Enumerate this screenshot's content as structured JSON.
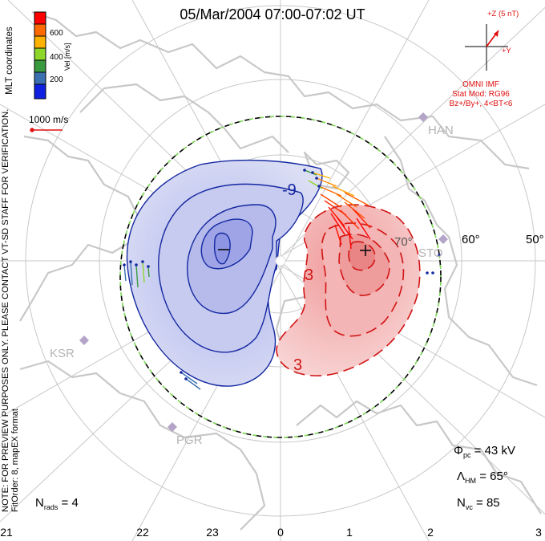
{
  "title": "05/Mar/2004 07:00-07:02 UT",
  "color_scale": {
    "unit_label": "Vel [m/s]",
    "ticks": [
      "600",
      "400",
      "200"
    ],
    "colors": [
      "#ff0000",
      "#ff6a00",
      "#ffb300",
      "#8fd62a",
      "#3a9a40",
      "#3a6fb0",
      "#1020e0"
    ]
  },
  "scale_vector": "1000 m/s",
  "side_text": {
    "coordinates": "MLT coordinates",
    "notice": "NOTE: FOR PREVIEW PURPOSES ONLY. PLEASE CONTACT VT-SD STAFF FOR VERIFICATION.",
    "fit": "FitOrder: 8, mapEX format"
  },
  "imf": {
    "z_label": "+Z (5 nT)",
    "y_label": "+Y",
    "source": "OMNI IMF",
    "stat_mod": "Stat Mod: RG96",
    "condition": "Bz+/By+, 4<BT<6"
  },
  "stations": [
    "HAN",
    "STO",
    "KSR",
    "PGR"
  ],
  "latitude_labels": [
    "60°",
    "50°",
    "70°"
  ],
  "contour_labels": [
    "-9",
    "3",
    "3"
  ],
  "mlt_labels": [
    "21",
    "22",
    "23",
    "0",
    "1",
    "2",
    "3"
  ],
  "stats": {
    "phi_pc": "43 kV",
    "lambda_hm": "65°",
    "n_vc": "85",
    "n_rads": "4"
  },
  "colors": {
    "negative_potential": "#1428a0",
    "positive_potential": "#d21414",
    "land": "#c8c8c8",
    "grid": "#c8c8c8"
  }
}
